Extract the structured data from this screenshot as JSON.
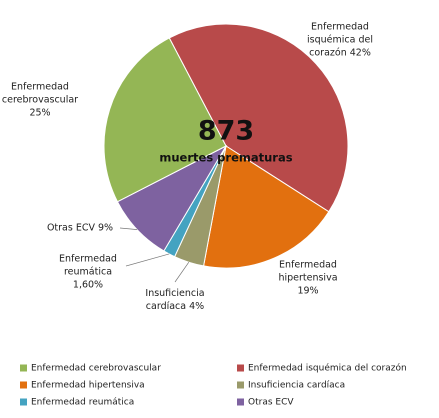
{
  "chart_data": {
    "type": "pie",
    "center_text": [
      "873",
      "muertes prematuras"
    ],
    "categories": [
      "Enfermedad isquémica del corazón",
      "Enfermedad hipertensiva",
      "Insuficiencia cardíaca",
      "Enfermedad reumática",
      "Otras ECV",
      "Enfermedad cerebrovascular"
    ],
    "values": [
      42,
      19,
      4,
      1.6,
      9,
      25
    ],
    "colors": [
      "#b84a4a",
      "#e2700f",
      "#9a9a6a",
      "#44a3c1",
      "#7e62a0",
      "#94b655"
    ],
    "value_labels": [
      [
        "Enfermedad",
        "isquémica del",
        "corazón 42%"
      ],
      [
        "Enfermedad",
        "hipertensiva",
        "19%"
      ],
      [
        "Insuficiencia",
        "cardíaca 4%"
      ],
      [
        "Enfermedad",
        "reumática",
        "1,60%"
      ],
      [
        "Otras ECV 9%"
      ],
      [
        "Enfermedad",
        "cerebrovascular",
        "25%"
      ]
    ],
    "legend_order": [
      5,
      0,
      1,
      2,
      3,
      4
    ]
  }
}
